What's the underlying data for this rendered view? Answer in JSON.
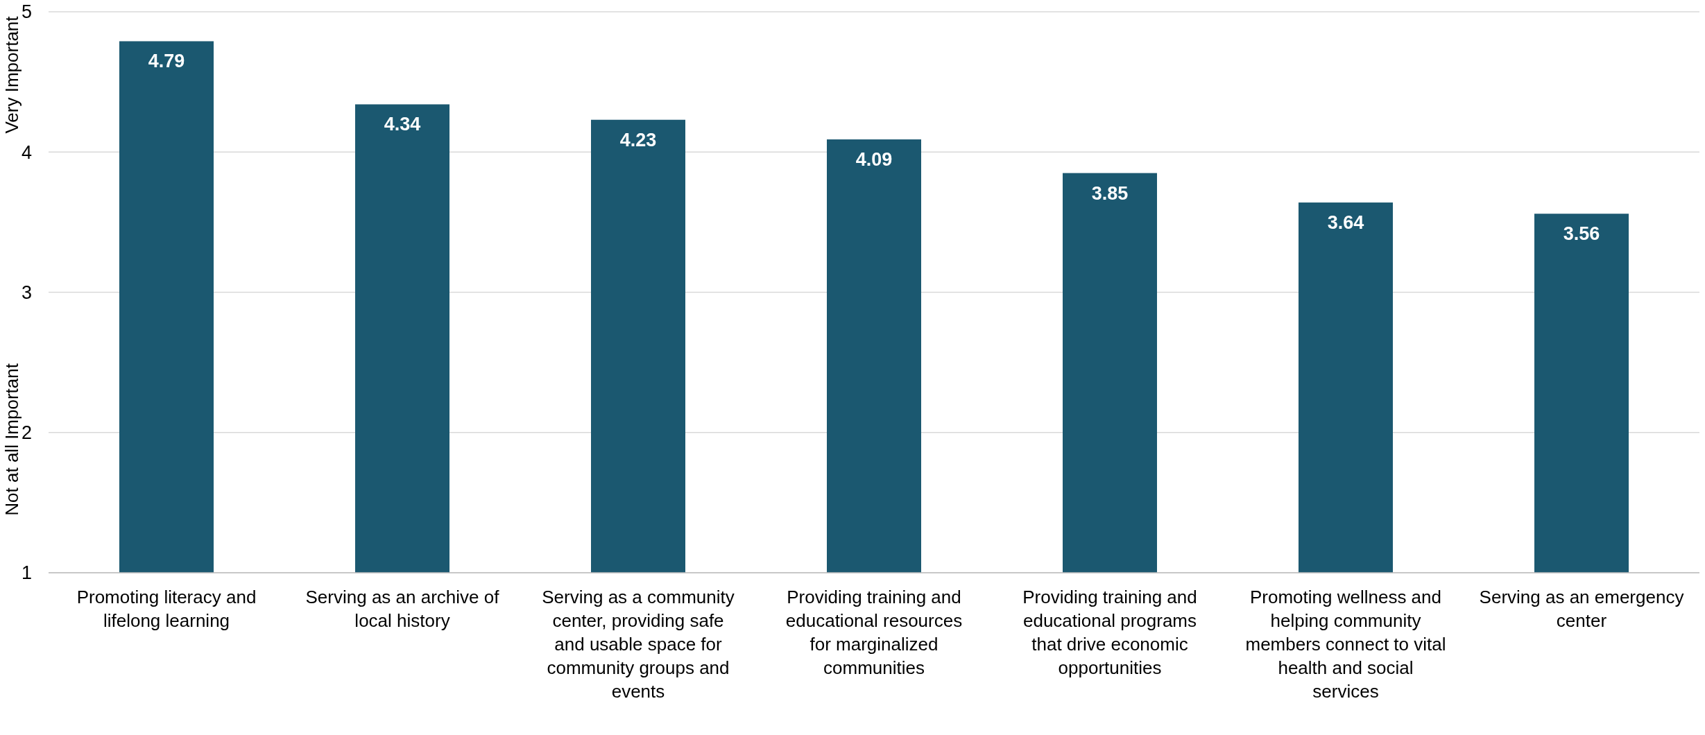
{
  "chart_data": {
    "type": "bar",
    "categories": [
      "Promoting literacy and lifelong learning",
      "Serving as an archive of local history",
      "Serving as a community center, providing safe and usable space for community groups and events",
      "Providing training and educational resources for marginalized communities",
      "Providing training and educational programs that drive economic opportunities",
      "Promoting wellness and helping community members connect to vital health and social services",
      "Serving as an emergency center"
    ],
    "values": [
      4.79,
      4.34,
      4.23,
      4.09,
      3.85,
      3.64,
      3.56
    ],
    "color": "#1b5870",
    "ylim": [
      1,
      5
    ],
    "yticks": [
      1,
      2,
      3,
      4,
      5
    ],
    "grid": true,
    "data_labels": true,
    "ylabel": "Not at all Important",
    "annotations": [
      "Very Important"
    ]
  }
}
